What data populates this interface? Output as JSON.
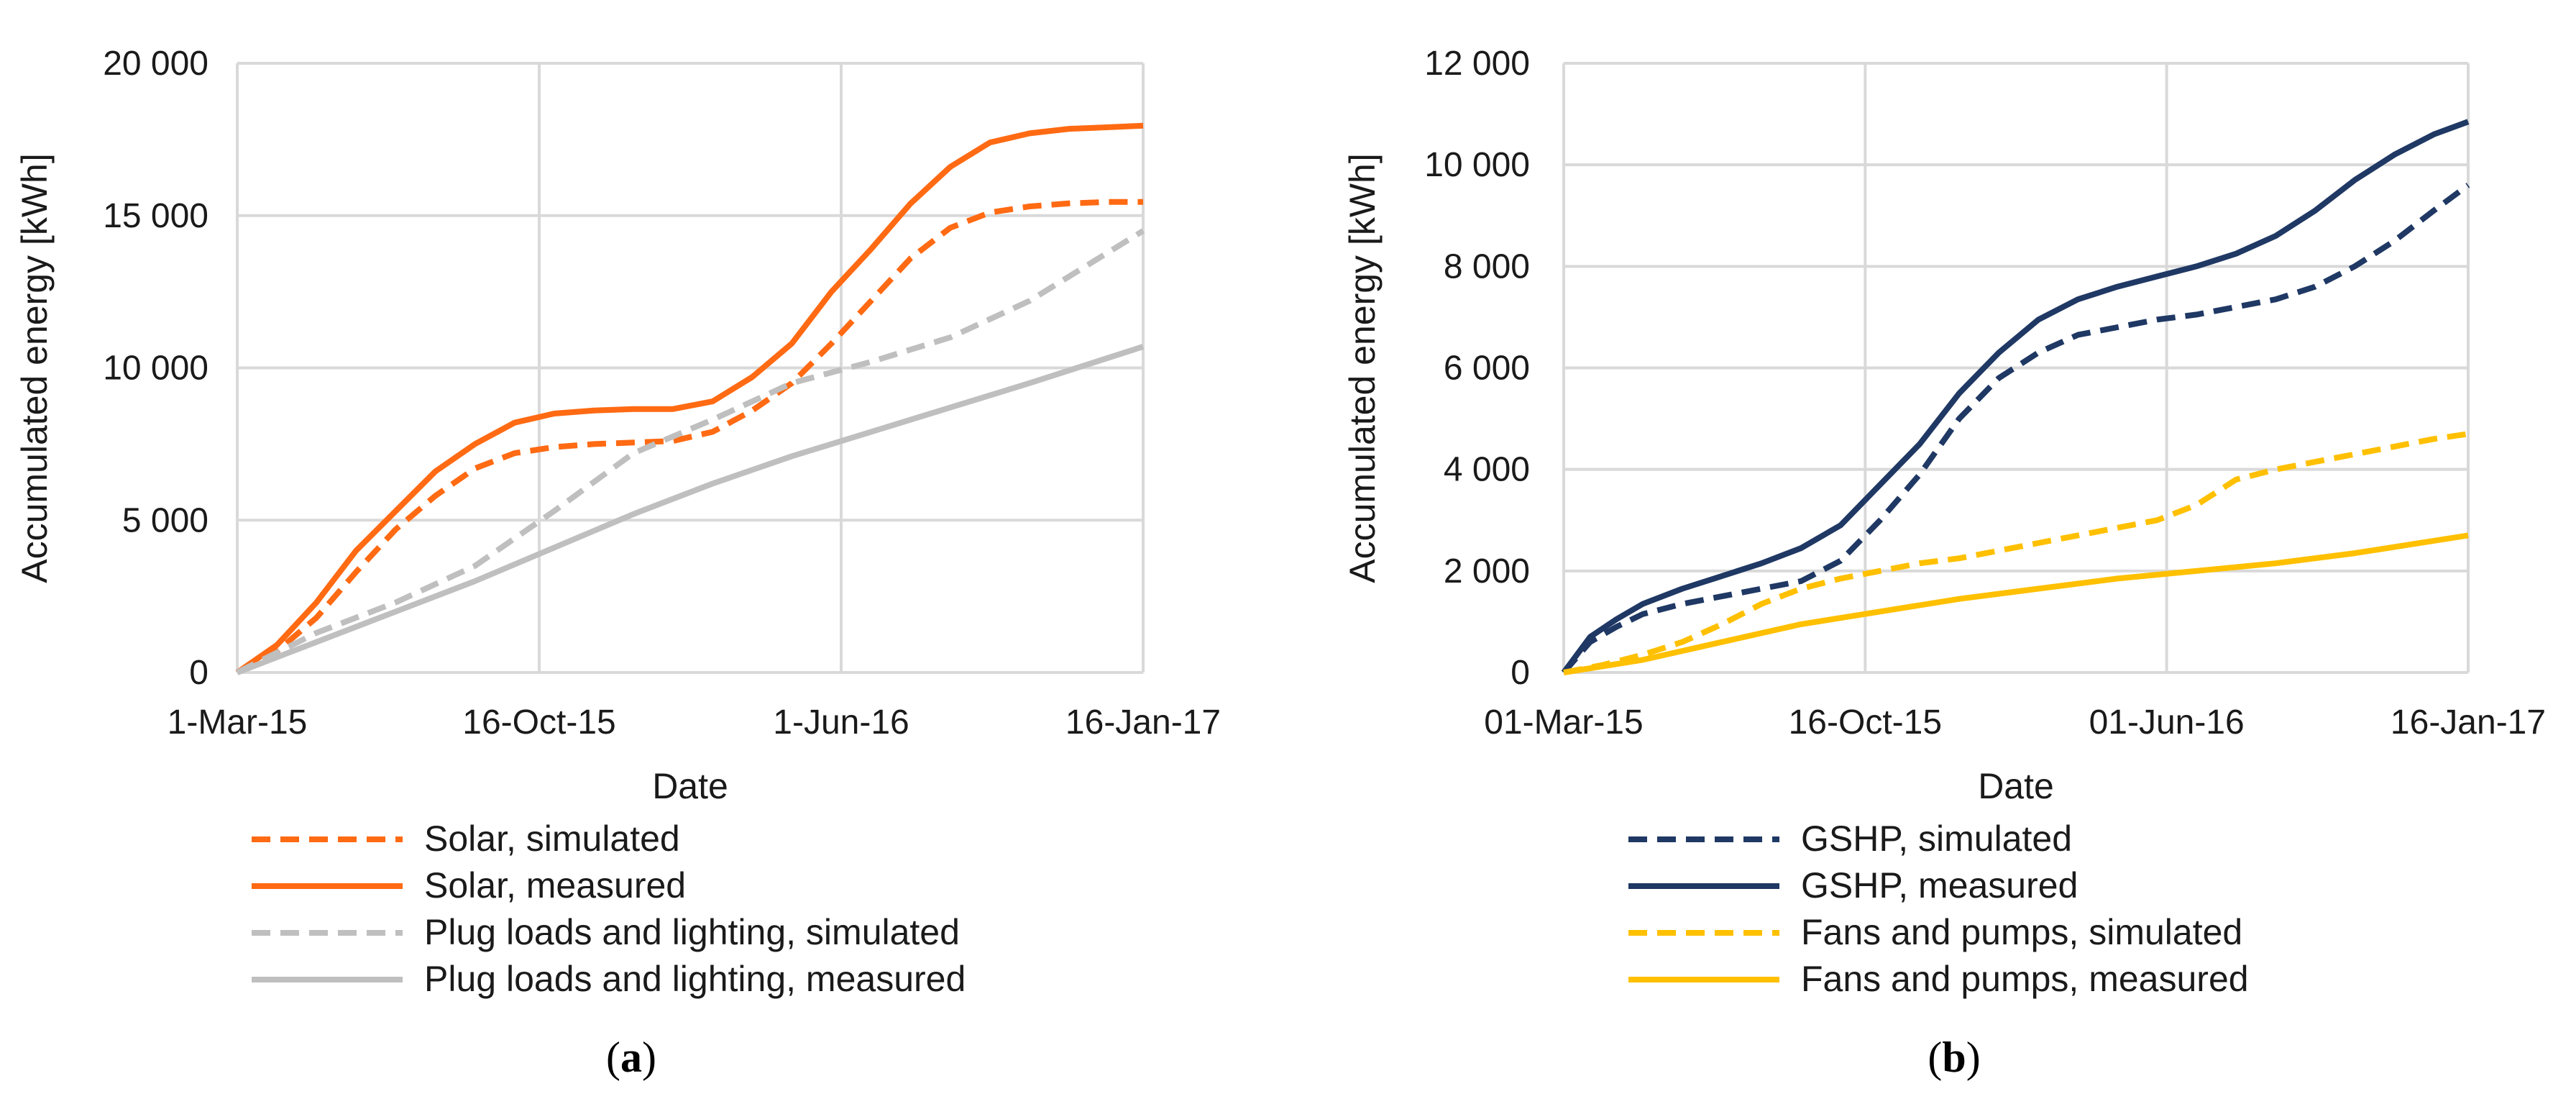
{
  "chart_data": [
    {
      "type": "line",
      "panel_label": "a",
      "xlabel": "Date",
      "ylabel": "Accumulated energy [kWh]",
      "x_ticks": [
        "1-Mar-15",
        "16-Oct-15",
        "1-Jun-16",
        "16-Jan-17"
      ],
      "xlim": [
        0,
        686
      ],
      "ylim": [
        0,
        20000
      ],
      "y_ticks": [
        0,
        5000,
        10000,
        15000,
        20000
      ],
      "y_tick_labels": [
        "0",
        "5 000",
        "10 000",
        "15 000",
        "20 000"
      ],
      "grid": true,
      "series": [
        {
          "name": "Solar,  simulated",
          "color": "#ff6a13",
          "dash": true,
          "x": [
            0,
            30,
            60,
            90,
            120,
            150,
            180,
            210,
            240,
            270,
            300,
            330,
            360,
            390,
            420,
            450,
            480,
            510,
            540,
            570,
            600,
            630,
            660,
            686
          ],
          "y": [
            0,
            700,
            1800,
            3300,
            4700,
            5800,
            6700,
            7200,
            7400,
            7500,
            7550,
            7600,
            7900,
            8600,
            9500,
            10800,
            12200,
            13600,
            14600,
            15100,
            15300,
            15400,
            15450,
            15450
          ]
        },
        {
          "name": "Solar,  measured",
          "color": "#ff6a13",
          "dash": false,
          "x": [
            0,
            30,
            60,
            90,
            120,
            150,
            180,
            210,
            240,
            270,
            300,
            330,
            360,
            390,
            420,
            450,
            480,
            510,
            540,
            570,
            600,
            630,
            660,
            686
          ],
          "y": [
            0,
            900,
            2300,
            4000,
            5300,
            6600,
            7500,
            8200,
            8500,
            8600,
            8650,
            8650,
            8900,
            9700,
            10800,
            12500,
            13900,
            15400,
            16600,
            17400,
            17700,
            17850,
            17900,
            17950
          ]
        },
        {
          "name": "Plug loads and lighting,  simulated",
          "color": "#bfbfbf",
          "dash": true,
          "x": [
            0,
            60,
            120,
            180,
            240,
            300,
            360,
            420,
            480,
            540,
            600,
            686
          ],
          "y": [
            0,
            1300,
            2300,
            3500,
            5300,
            7200,
            8300,
            9500,
            10200,
            11000,
            12200,
            14500
          ]
        },
        {
          "name": "Plug loads and lighting,  measured",
          "color": "#bfbfbf",
          "dash": false,
          "x": [
            0,
            60,
            120,
            180,
            240,
            300,
            360,
            420,
            480,
            540,
            600,
            686
          ],
          "y": [
            0,
            1000,
            2000,
            3000,
            4100,
            5200,
            6200,
            7100,
            7900,
            8700,
            9500,
            10700
          ]
        }
      ]
    },
    {
      "type": "line",
      "panel_label": "b",
      "xlabel": "Date",
      "ylabel": "Accumulated energy [kWh]",
      "x_ticks": [
        "01-Mar-15",
        "16-Oct-15",
        "01-Jun-16",
        "16-Jan-17"
      ],
      "xlim": [
        0,
        686
      ],
      "ylim": [
        0,
        12000
      ],
      "y_ticks": [
        0,
        2000,
        4000,
        6000,
        8000,
        10000,
        12000
      ],
      "y_tick_labels": [
        "0",
        "2 000",
        "4 000",
        "6 000",
        "8 000",
        "10 000",
        "12 000"
      ],
      "grid": true,
      "series": [
        {
          "name": "GSHP,  simulated",
          "color": "#1f3864",
          "dash": true,
          "x": [
            0,
            20,
            40,
            60,
            90,
            120,
            150,
            180,
            210,
            240,
            270,
            300,
            330,
            360,
            390,
            420,
            450,
            480,
            510,
            540,
            570,
            600,
            630,
            660,
            686
          ],
          "y": [
            0,
            600,
            900,
            1150,
            1350,
            1500,
            1650,
            1800,
            2200,
            3000,
            3900,
            5000,
            5800,
            6300,
            6650,
            6800,
            6950,
            7050,
            7200,
            7350,
            7600,
            8000,
            8500,
            9100,
            9600
          ]
        },
        {
          "name": "GSHP,  measured",
          "color": "#1f3864",
          "dash": false,
          "x": [
            0,
            20,
            40,
            60,
            90,
            120,
            150,
            180,
            210,
            240,
            270,
            300,
            330,
            360,
            390,
            420,
            450,
            480,
            510,
            540,
            570,
            600,
            630,
            660,
            686
          ],
          "y": [
            0,
            700,
            1050,
            1350,
            1650,
            1900,
            2150,
            2450,
            2900,
            3700,
            4500,
            5500,
            6300,
            6950,
            7350,
            7600,
            7800,
            8000,
            8250,
            8600,
            9100,
            9700,
            10200,
            10600,
            10850
          ]
        },
        {
          "name": "Fans and pumps,  simulated",
          "color": "#ffc000",
          "dash": true,
          "x": [
            0,
            30,
            60,
            90,
            120,
            150,
            180,
            210,
            240,
            270,
            300,
            330,
            360,
            390,
            420,
            450,
            480,
            510,
            540,
            570,
            600,
            630,
            660,
            686
          ],
          "y": [
            0,
            150,
            350,
            600,
            950,
            1350,
            1650,
            1850,
            2000,
            2150,
            2250,
            2400,
            2550,
            2700,
            2850,
            3000,
            3300,
            3800,
            4000,
            4150,
            4300,
            4450,
            4600,
            4700
          ]
        },
        {
          "name": "Fans and pumps,  measured",
          "color": "#ffc000",
          "dash": false,
          "x": [
            0,
            60,
            120,
            180,
            240,
            300,
            360,
            420,
            480,
            540,
            600,
            686
          ],
          "y": [
            0,
            250,
            600,
            950,
            1200,
            1450,
            1650,
            1850,
            2000,
            2150,
            2350,
            2700
          ]
        }
      ]
    }
  ]
}
